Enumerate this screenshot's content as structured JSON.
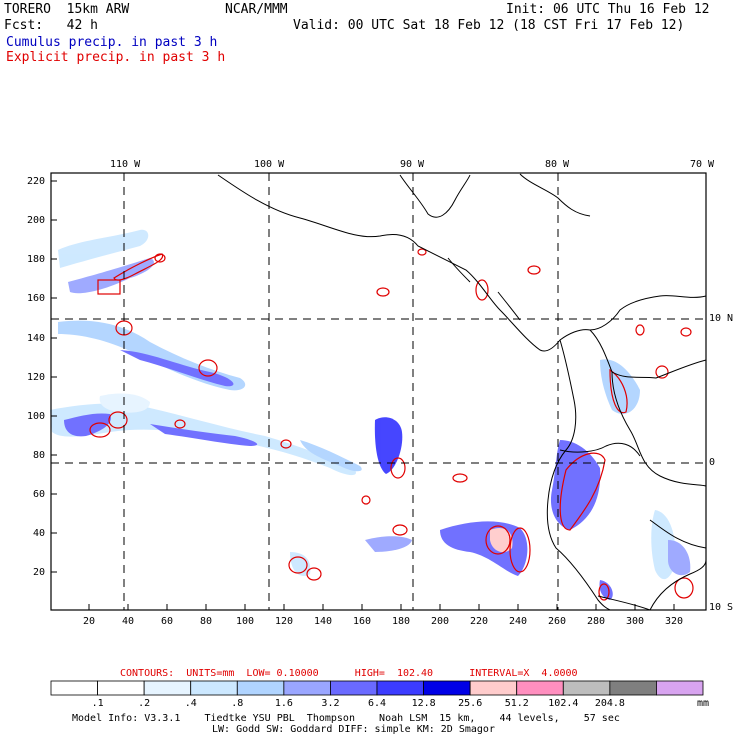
{
  "header": {
    "model": "TORERO  15km ARW",
    "org": "NCAR/MMM",
    "init": "Init: 06 UTC Thu 16 Feb 12",
    "fcst": "Fcst:   42 h",
    "valid": "Valid: 00 UTC Sat 18 Feb 12 (18 CST Fri 17 Feb 12)",
    "line1": "Cumulus precip. in past 3 h",
    "line2": "Explicit precip. in past 3 h"
  },
  "map": {
    "top_lon_labels": [
      "110 W",
      "100 W",
      "90 W",
      "80 W",
      "70 W"
    ],
    "right_lat_labels": [
      "10 N",
      "0",
      "10 S"
    ],
    "left_y_ticks": [
      "220",
      "200",
      "180",
      "160",
      "140",
      "120",
      "100",
      "80",
      "60",
      "40",
      "20"
    ],
    "bottom_x_ticks": [
      "20",
      "40",
      "60",
      "80",
      "100",
      "120",
      "140",
      "160",
      "180",
      "200",
      "220",
      "240",
      "260",
      "280",
      "300",
      "320"
    ]
  },
  "contour_info": "CONTOURS:  UNITS=mm  LOW= 0.10000      HIGH=  102.40      INTERVAL=X  4.0000",
  "legend": {
    "unit": "mm",
    "labels": [
      ".1",
      ".2",
      ".4",
      ".8",
      "1.6",
      "3.2",
      "6.4",
      "12.8",
      "25.6",
      "51.2",
      "102.4",
      "204.8"
    ],
    "colors": [
      "#ffffff",
      "#ffffff",
      "#e6f4ff",
      "#cce8ff",
      "#b0d4ff",
      "#9aa6ff",
      "#6a6aff",
      "#3c3cff",
      "#0000e6",
      "#ffcccc",
      "#ff8fbf",
      "#bdbdbd",
      "#7f7f7f",
      "#d8a4f0"
    ]
  },
  "footer": {
    "line1": "Model Info: V3.3.1    Tiedtke YSU PBL  Thompson    Noah LSM  15 km,    44 levels,    57 sec",
    "line2": "LW: Godd SW: Goddard DIFF: simple KM: 2D Smagor"
  }
}
